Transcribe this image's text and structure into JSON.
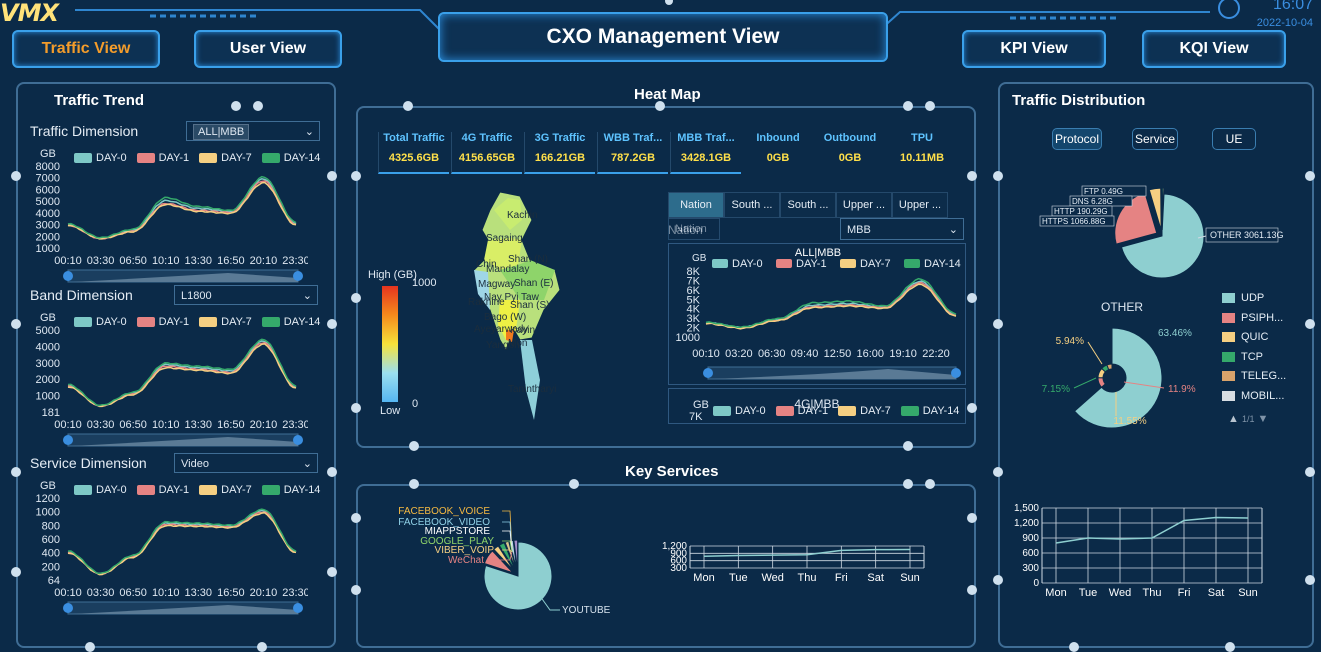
{
  "header": {
    "logo": "VMX",
    "title": "CXO Management View",
    "time": "16:07",
    "date": "2022-10-04",
    "nav_left": [
      "Traffic View",
      "User View"
    ],
    "nav_right": [
      "KPI View",
      "KQI View"
    ]
  },
  "traffic_trend": {
    "title": "Traffic Trend",
    "legend": [
      "DAY-0",
      "DAY-1",
      "DAY-7",
      "DAY-14"
    ],
    "dimensions": [
      {
        "label": "Traffic Dimension",
        "select": "ALL|MBB",
        "unit": "GB",
        "yticks": [
          "8000",
          "7000",
          "6000",
          "5000",
          "4000",
          "3000",
          "2000",
          "1000"
        ]
      },
      {
        "label": "Band Dimension",
        "select": "L1800",
        "unit": "GB",
        "yticks": [
          "5000",
          "4000",
          "3000",
          "2000",
          "1000",
          "181"
        ]
      },
      {
        "label": "Service Dimension",
        "select": "Video",
        "unit": "GB",
        "yticks": [
          "1200",
          "1000",
          "800",
          "600",
          "400",
          "200",
          "64"
        ]
      }
    ],
    "xticks": [
      "00:10",
      "03:30",
      "06:50",
      "10:10",
      "13:30",
      "16:50",
      "20:10",
      "23:30"
    ]
  },
  "heat_map": {
    "title": "Heat Map",
    "kpis": [
      {
        "label": "Total Traffic",
        "value": "4325.6GB"
      },
      {
        "label": "4G Traffic",
        "value": "4156.65GB"
      },
      {
        "label": "3G Traffic",
        "value": "166.21GB"
      },
      {
        "label": "WBB Traf...",
        "value": "787.2GB"
      },
      {
        "label": "MBB Traf...",
        "value": "3428.1GB"
      },
      {
        "label": "Inbound",
        "value": "0GB"
      },
      {
        "label": "Outbound",
        "value": "0GB"
      },
      {
        "label": "TPU",
        "value": "10.11MB"
      }
    ],
    "scale_high": "High (GB)",
    "scale_high_val": "1000",
    "scale_low": "Low",
    "scale_low_val": "0",
    "regions": [
      "Kachin",
      "Sagaing",
      "Chin",
      "Mandalay",
      "Shan (N)",
      "Magway",
      "Shan (E)",
      "Nay Pyi Taw",
      "Rakhine",
      "Bago (W)",
      "Shan (S)",
      "Ayeyarwady",
      "Yangon",
      "Kayin",
      "Mon",
      "Tanintharyi"
    ],
    "tabs": [
      "Nation",
      "South ...",
      "South ...",
      "Upper ...",
      "Upper ..."
    ],
    "filter_label": "Nation",
    "filter_value": "Nation",
    "select": "MBB",
    "chart1_title": "ALL|MBB",
    "chart1_unit": "GB",
    "chart1_yticks": [
      "8K",
      "7K",
      "6K",
      "5K",
      "4K",
      "3K",
      "2K",
      "1000"
    ],
    "chart1_xticks": [
      "00:10",
      "03:20",
      "06:30",
      "09:40",
      "12:50",
      "16:00",
      "19:10",
      "22:20"
    ],
    "chart2_title": "4G|MBB",
    "chart2_unit": "GB",
    "chart2_ytick": "7K",
    "legend": [
      "DAY-0",
      "DAY-1",
      "DAY-7",
      "DAY-14"
    ]
  },
  "key_services": {
    "title": "Key Services",
    "pie_labels": [
      "FACEBOOK_VOICE",
      "FACEBOOK_VIDEO",
      "MIAPPSTORE",
      "GOOGLE_PLAY",
      "VIBER_VOIP",
      "WeChat",
      "YOUTUBE"
    ],
    "week_yticks": [
      "1,200",
      "900",
      "600",
      "300"
    ],
    "days": [
      "Mon",
      "Tue",
      "Wed",
      "Thu",
      "Fri",
      "Sat",
      "Sun"
    ]
  },
  "traffic_distribution": {
    "title": "Traffic Distribution",
    "tabs": [
      "Protocol",
      "Service",
      "UE"
    ],
    "pie_labels": [
      "FTP 0.49G",
      "DNS 6.28G",
      "HTTP 190.29G",
      "HTTPS 1066.88G",
      "OTHER 3061.13G"
    ],
    "other_title": "OTHER",
    "donut_labels": [
      "63.46%",
      "5.94%",
      "7.15%",
      "11.9%",
      "11.55%"
    ],
    "legend": [
      "UDP",
      "PSIPH...",
      "QUIC",
      "TCP",
      "TELEG...",
      "MOBIL..."
    ],
    "page": "1/1",
    "line_yticks": [
      "1,500",
      "1,200",
      "900",
      "600",
      "300",
      "0"
    ],
    "days": [
      "Mon",
      "Tue",
      "Wed",
      "Thu",
      "Fri",
      "Sat",
      "Sun"
    ]
  },
  "colors": {
    "day0": "#7ec8c6",
    "day1": "#e58383",
    "day7": "#f5cf82",
    "day14": "#35a96b",
    "accent": "#f39c2b",
    "frame": "#3aa0ea"
  },
  "chart_data": [
    {
      "type": "line",
      "title": "Traffic Dimension",
      "ylabel": "GB",
      "x": [
        "00:10",
        "03:30",
        "06:50",
        "10:10",
        "13:30",
        "16:50",
        "20:10",
        "23:30"
      ],
      "series": [
        {
          "name": "DAY-0",
          "values": [
            2400,
            1000,
            1800,
            4800,
            4000,
            3700,
            7000,
            2500
          ]
        },
        {
          "name": "DAY-1",
          "values": [
            2300,
            950,
            1700,
            4500,
            3800,
            3600,
            6800,
            2400
          ]
        },
        {
          "name": "DAY-7",
          "values": [
            2300,
            950,
            1650,
            4400,
            3700,
            3500,
            6600,
            2300
          ]
        },
        {
          "name": "DAY-14",
          "values": [
            2450,
            1050,
            1900,
            5100,
            4200,
            3800,
            7200,
            2600
          ]
        }
      ]
    },
    {
      "type": "line",
      "title": "Band Dimension",
      "ylabel": "GB",
      "x": [
        "00:10",
        "03:30",
        "06:50",
        "10:10",
        "13:30",
        "16:50",
        "20:10",
        "23:30"
      ],
      "series": [
        {
          "name": "DAY-0",
          "values": [
            1700,
            400,
            1200,
            3000,
            2800,
            2600,
            4500,
            1600
          ]
        },
        {
          "name": "DAY-1",
          "values": [
            1650,
            380,
            1150,
            2900,
            2700,
            2500,
            4400,
            1550
          ]
        },
        {
          "name": "DAY-7",
          "values": [
            1600,
            370,
            1100,
            2800,
            2650,
            2450,
            4300,
            1500
          ]
        },
        {
          "name": "DAY-14",
          "values": [
            1750,
            420,
            1250,
            3100,
            2900,
            2700,
            4600,
            1650
          ]
        }
      ]
    },
    {
      "type": "line",
      "title": "Service Dimension",
      "ylabel": "GB",
      "x": [
        "00:10",
        "03:30",
        "06:50",
        "10:10",
        "13:30",
        "16:50",
        "20:10",
        "23:30"
      ],
      "series": [
        {
          "name": "DAY-0",
          "values": [
            450,
            100,
            380,
            900,
            880,
            850,
            1100,
            450
          ]
        },
        {
          "name": "DAY-1",
          "values": [
            440,
            95,
            370,
            880,
            860,
            840,
            1080,
            440
          ]
        },
        {
          "name": "DAY-7",
          "values": [
            430,
            90,
            360,
            860,
            850,
            830,
            1060,
            430
          ]
        },
        {
          "name": "DAY-14",
          "values": [
            460,
            105,
            390,
            920,
            900,
            870,
            1120,
            460
          ]
        }
      ]
    },
    {
      "type": "line",
      "title": "ALL|MBB",
      "ylabel": "GB",
      "x": [
        "00:10",
        "03:20",
        "06:30",
        "09:40",
        "12:50",
        "16:00",
        "19:10",
        "22:20"
      ],
      "series": [
        {
          "name": "DAY-0",
          "values": [
            1800,
            1200,
            2200,
            4000,
            4200,
            3800,
            7000,
            2800
          ]
        },
        {
          "name": "DAY-1",
          "values": [
            1750,
            1150,
            2100,
            3800,
            4000,
            3700,
            6800,
            2700
          ]
        },
        {
          "name": "DAY-7",
          "values": [
            1700,
            1100,
            2050,
            3700,
            3900,
            3600,
            6600,
            2600
          ]
        },
        {
          "name": "DAY-14",
          "values": [
            1850,
            1250,
            2300,
            4300,
            4500,
            3900,
            7300,
            2900
          ]
        }
      ]
    },
    {
      "type": "pie",
      "title": "Key Services",
      "categories": [
        "YOUTUBE",
        "WeChat",
        "VIBER_VOIP",
        "GOOGLE_PLAY",
        "MIAPPSTORE",
        "FACEBOOK_VIDEO",
        "FACEBOOK_VOICE"
      ],
      "values": [
        80,
        8,
        3,
        3,
        2,
        2,
        2
      ]
    },
    {
      "type": "line",
      "x": [
        "Mon",
        "Tue",
        "Wed",
        "Thu",
        "Fri",
        "Sat",
        "Sun"
      ],
      "values": [
        800,
        850,
        880,
        900,
        1200,
        1250,
        1260
      ]
    },
    {
      "type": "pie",
      "title": "Protocol",
      "categories": [
        "OTHER",
        "HTTPS",
        "HTTP",
        "DNS",
        "FTP"
      ],
      "values": [
        3061.13,
        1066.88,
        190.29,
        6.28,
        0.49
      ]
    },
    {
      "type": "pie",
      "title": "OTHER",
      "categories": [
        "UDP",
        "PSIPH...",
        "QUIC",
        "TCP",
        "TELEG..."
      ],
      "values": [
        63.46,
        11.9,
        11.55,
        7.15,
        5.94
      ]
    },
    {
      "type": "line",
      "x": [
        "Mon",
        "Tue",
        "Wed",
        "Thu",
        "Fri",
        "Sat",
        "Sun"
      ],
      "values": [
        800,
        900,
        880,
        900,
        1250,
        1310,
        1300
      ],
      "ylim": [
        0,
        1500
      ]
    }
  ]
}
